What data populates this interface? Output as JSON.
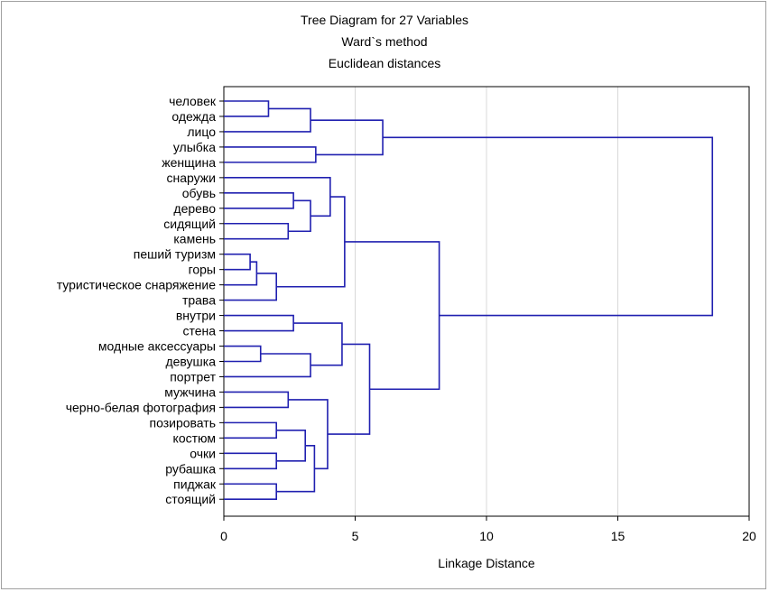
{
  "chart_data": {
    "type": "dendrogram",
    "title_lines": [
      "Tree Diagram for 27  Variables",
      "Ward`s method",
      "Euclidean distances"
    ],
    "xlabel": "Linkage Distance",
    "xlim": [
      0,
      20
    ],
    "xticks": [
      0,
      5,
      10,
      15,
      20
    ],
    "grid": "vertical",
    "leaves": [
      "человек",
      "одежда",
      "лицо",
      "улыбка",
      "женщина",
      "снаружи",
      "обувь",
      "дерево",
      "сидящий",
      "камень",
      "пеший туризм",
      "горы",
      "туристическое снаряжение",
      "трава",
      "внутри",
      "стена",
      "модные аксессуары",
      "девушка",
      "портрет",
      "мужчина",
      "черно-белая фотография",
      "позировать",
      "костюм",
      "очки",
      "рубашка",
      "пиджак",
      "стоящий"
    ],
    "merges": [
      {
        "a": "L0",
        "b": "L1",
        "height": 1.7
      },
      {
        "a": "M0",
        "b": "L2",
        "height": 3.3
      },
      {
        "a": "L3",
        "b": "L4",
        "height": 3.5
      },
      {
        "a": "M1",
        "b": "M2",
        "height": 6.05
      },
      {
        "a": "L6",
        "b": "L7",
        "height": 2.65
      },
      {
        "a": "L8",
        "b": "L9",
        "height": 2.45
      },
      {
        "a": "M4",
        "b": "M5",
        "height": 3.3
      },
      {
        "a": "L5",
        "b": "M6",
        "height": 4.05
      },
      {
        "a": "L10",
        "b": "L11",
        "height": 1.0
      },
      {
        "a": "M8",
        "b": "L12",
        "height": 1.25
      },
      {
        "a": "M9",
        "b": "L13",
        "height": 2.0
      },
      {
        "a": "M7",
        "b": "M10",
        "height": 4.6
      },
      {
        "a": "L14",
        "b": "L15",
        "height": 2.65
      },
      {
        "a": "L16",
        "b": "L17",
        "height": 1.4
      },
      {
        "a": "M13",
        "b": "L18",
        "height": 3.3
      },
      {
        "a": "M12",
        "b": "M14",
        "height": 4.5
      },
      {
        "a": "L19",
        "b": "L20",
        "height": 2.45
      },
      {
        "a": "L21",
        "b": "L22",
        "height": 2.0
      },
      {
        "a": "L23",
        "b": "L24",
        "height": 2.0
      },
      {
        "a": "M17",
        "b": "M18",
        "height": 3.1
      },
      {
        "a": "L25",
        "b": "L26",
        "height": 2.0
      },
      {
        "a": "M19",
        "b": "M20",
        "height": 3.45
      },
      {
        "a": "M16",
        "b": "M21",
        "height": 3.95
      },
      {
        "a": "M15",
        "b": "M22",
        "height": 5.55
      },
      {
        "a": "M11",
        "b": "M23",
        "height": 8.2
      },
      {
        "a": "M3",
        "b": "M24",
        "height": 18.6
      }
    ],
    "line_color": "#2020b0",
    "grid_color": "#d8d8d8"
  }
}
